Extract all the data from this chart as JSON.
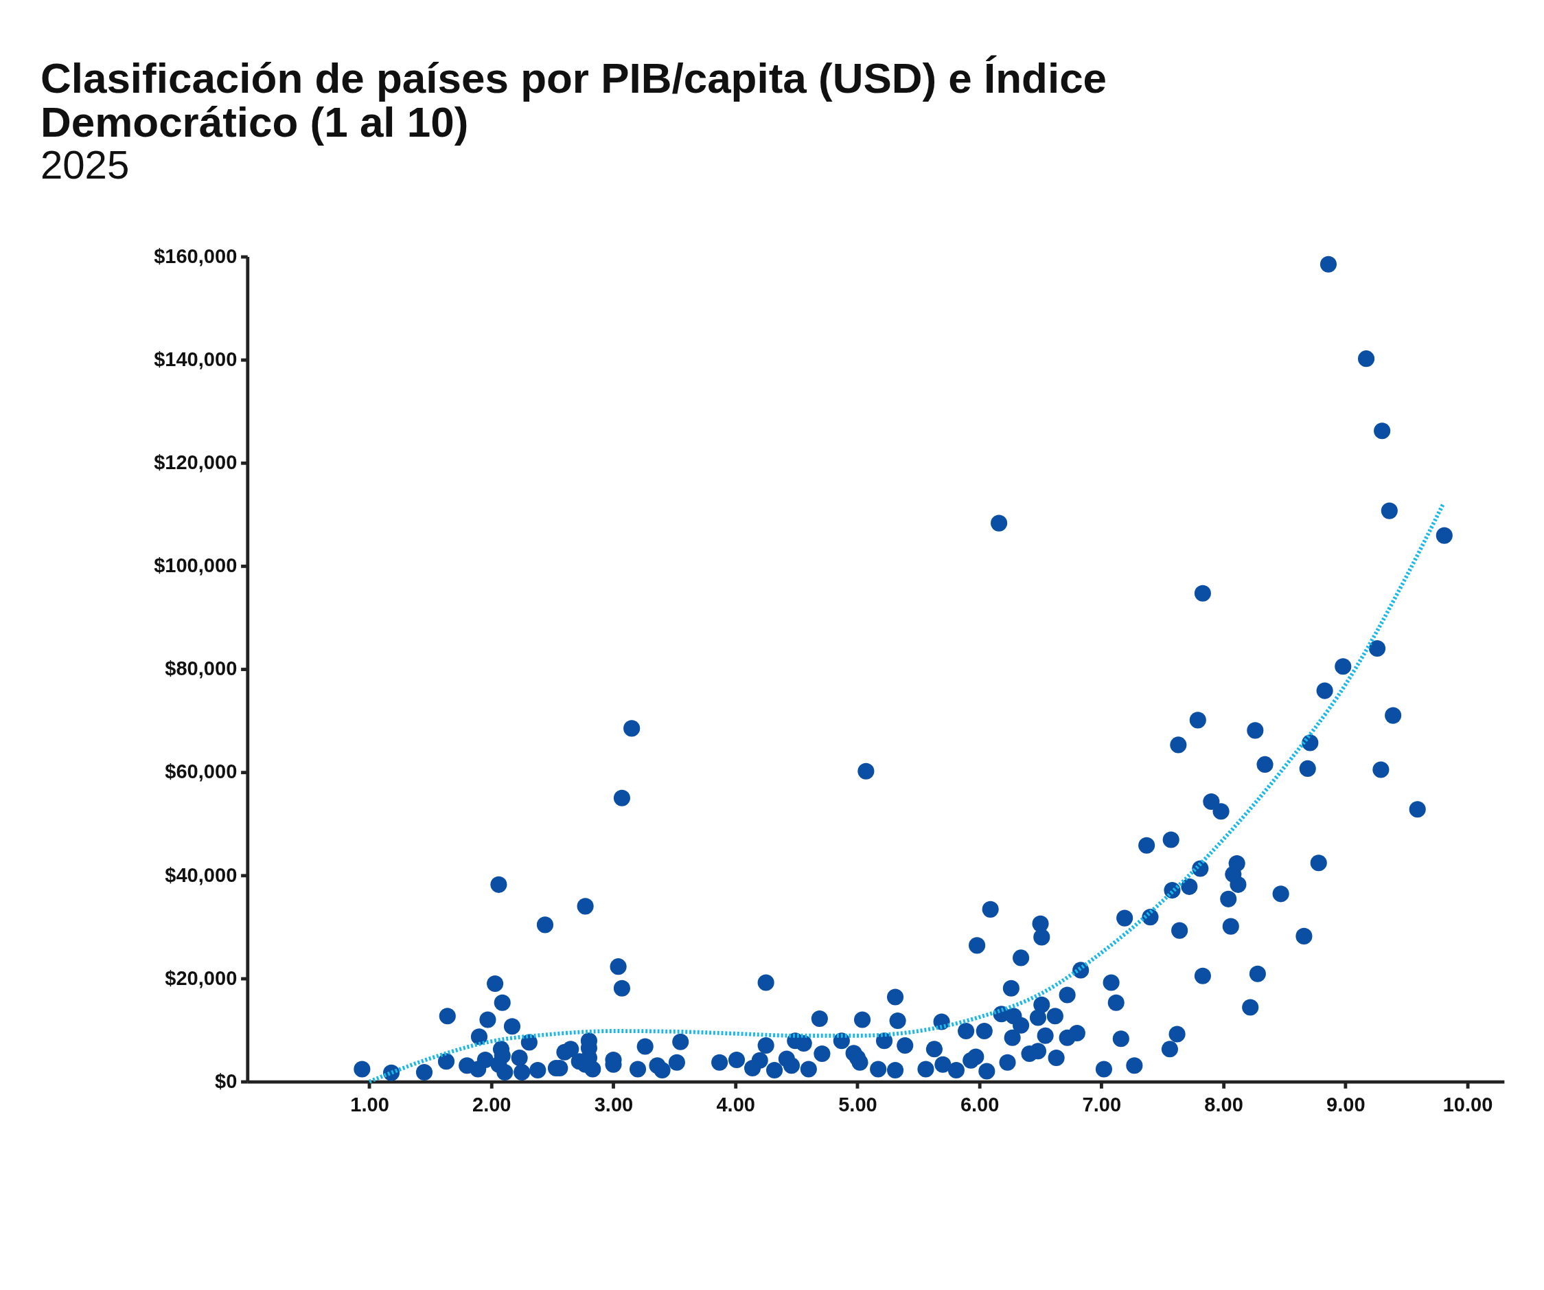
{
  "chart_data": {
    "type": "scatter",
    "title": [
      "Clasificación de países por PIB/capita (USD) e Índice",
      "Democrático (1 al 10)"
    ],
    "subtitle": "2025",
    "xlim": [
      0,
      10.3
    ],
    "ylim": [
      0,
      160000
    ],
    "xticks": [
      {
        "value": 1,
        "label": "1.00"
      },
      {
        "value": 2,
        "label": "2.00"
      },
      {
        "value": 3,
        "label": "3.00"
      },
      {
        "value": 4,
        "label": "4.00"
      },
      {
        "value": 5,
        "label": "5.00"
      },
      {
        "value": 6,
        "label": "6.00"
      },
      {
        "value": 7,
        "label": "7.00"
      },
      {
        "value": 8,
        "label": "8.00"
      },
      {
        "value": 9,
        "label": "9.00"
      },
      {
        "value": 10,
        "label": "10.00"
      }
    ],
    "yticks": [
      {
        "value": 0,
        "label": "$0"
      },
      {
        "value": 20000,
        "label": "$20,000"
      },
      {
        "value": 40000,
        "label": "$40,000"
      },
      {
        "value": 60000,
        "label": "$60,000"
      },
      {
        "value": 80000,
        "label": "$80,000"
      },
      {
        "value": 100000,
        "label": "$100,000"
      },
      {
        "value": 120000,
        "label": "$120,000"
      },
      {
        "value": 140000,
        "label": "$140,000"
      },
      {
        "value": 160000,
        "label": "$160,000"
      }
    ],
    "grid": false,
    "series": [
      {
        "color": "#0a4fa3",
        "marker": "circle",
        "x": [
          0.94,
          1.18,
          1.45,
          1.64,
          1.63,
          1.8,
          1.89,
          1.9,
          1.97,
          1.95,
          2.03,
          2.06,
          2.09,
          2.08,
          2.09,
          2.11,
          2.06,
          2.17,
          2.23,
          2.25,
          2.31,
          2.38,
          2.44,
          2.53,
          2.56,
          2.6,
          2.65,
          2.72,
          2.77,
          2.8,
          2.8,
          2.8,
          2.77,
          2.83,
          3.04,
          3.07,
          3.07,
          3.15,
          3.0,
          3.0,
          3.2,
          3.26,
          3.36,
          3.4,
          3.52,
          3.55,
          3.87,
          4.01,
          4.14,
          4.2,
          4.25,
          4.25,
          4.32,
          4.42,
          4.46,
          4.49,
          4.56,
          4.6,
          4.69,
          4.71,
          4.87,
          4.97,
          5.0,
          5.02,
          5.07,
          5.04,
          5.17,
          5.22,
          5.31,
          5.33,
          5.31,
          5.39,
          5.56,
          5.63,
          5.69,
          5.7,
          5.81,
          5.89,
          5.93,
          5.97,
          5.98,
          6.04,
          6.06,
          6.09,
          6.16,
          6.18,
          6.23,
          6.26,
          6.27,
          6.28,
          6.34,
          6.34,
          6.41,
          6.48,
          6.5,
          6.51,
          6.51,
          6.48,
          6.54,
          6.62,
          6.63,
          6.72,
          6.72,
          6.8,
          6.83,
          7.02,
          7.08,
          7.12,
          7.16,
          7.19,
          7.27,
          7.37,
          7.4,
          7.57,
          7.58,
          7.56,
          7.63,
          7.64,
          7.62,
          7.72,
          7.79,
          7.81,
          7.83,
          7.83,
          7.9,
          7.98,
          8.04,
          8.06,
          8.08,
          8.11,
          8.12,
          8.22,
          8.26,
          8.28,
          8.34,
          8.47,
          8.66,
          8.69,
          8.71,
          8.78,
          8.83,
          8.86,
          8.98,
          9.17,
          9.26,
          9.29,
          9.3,
          9.36,
          9.39,
          9.59,
          9.81
        ],
        "values": [
          2400,
          1700,
          1800,
          12700,
          3900,
          3100,
          2400,
          8700,
          12000,
          4200,
          19000,
          38200,
          15300,
          6300,
          5000,
          1800,
          3300,
          10700,
          4600,
          1800,
          7600,
          2200,
          30400,
          2600,
          2600,
          5700,
          6300,
          3900,
          34000,
          7900,
          6500,
          4600,
          3300,
          2400,
          22300,
          55000,
          18100,
          68500,
          4200,
          3300,
          2400,
          6800,
          3100,
          2200,
          3700,
          7700,
          3700,
          4200,
          2600,
          4100,
          19200,
          7000,
          2200,
          4400,
          3100,
          7900,
          7400,
          2400,
          12200,
          5400,
          7900,
          5500,
          4600,
          3700,
          60200,
          12000,
          2400,
          7900,
          16400,
          11800,
          2200,
          7000,
          2400,
          6300,
          11600,
          3300,
          2200,
          9800,
          4100,
          4800,
          26400,
          9800,
          2000,
          33400,
          108300,
          13100,
          3700,
          18100,
          8500,
          12700,
          10900,
          24000,
          5400,
          5900,
          30600,
          28000,
          14900,
          12400,
          8900,
          12700,
          4600,
          16800,
          8500,
          9400,
          21600,
          2400,
          19200,
          15300,
          8300,
          31700,
          3100,
          45800,
          31900,
          46900,
          37100,
          6300,
          65300,
          29300,
          9200,
          37800,
          70100,
          41300,
          94700,
          20500,
          54300,
          52400,
          35400,
          30100,
          40200,
          42300,
          38200,
          14400,
          68100,
          20900,
          61500,
          36400,
          28200,
          60700,
          65700,
          42400,
          75800,
          158500,
          80500,
          140200,
          84000,
          60500,
          126200,
          110700,
          71000,
          52800,
          105900
        ]
      },
      {
        "type": "line",
        "color": "#1ab8e6",
        "line_style": "dotted",
        "x": [
          1.0,
          1.5,
          2.0,
          2.5,
          3.0,
          3.5,
          4.0,
          4.5,
          5.0,
          5.5,
          6.0,
          6.5,
          7.0,
          7.5,
          8.0,
          8.5,
          9.0,
          9.5,
          9.8
        ],
        "values": [
          0,
          4500,
          7800,
          9200,
          9800,
          9700,
          9300,
          8900,
          8900,
          9800,
          12500,
          17000,
          25000,
          35000,
          47000,
          61000,
          77000,
          98000,
          112000
        ]
      }
    ]
  }
}
